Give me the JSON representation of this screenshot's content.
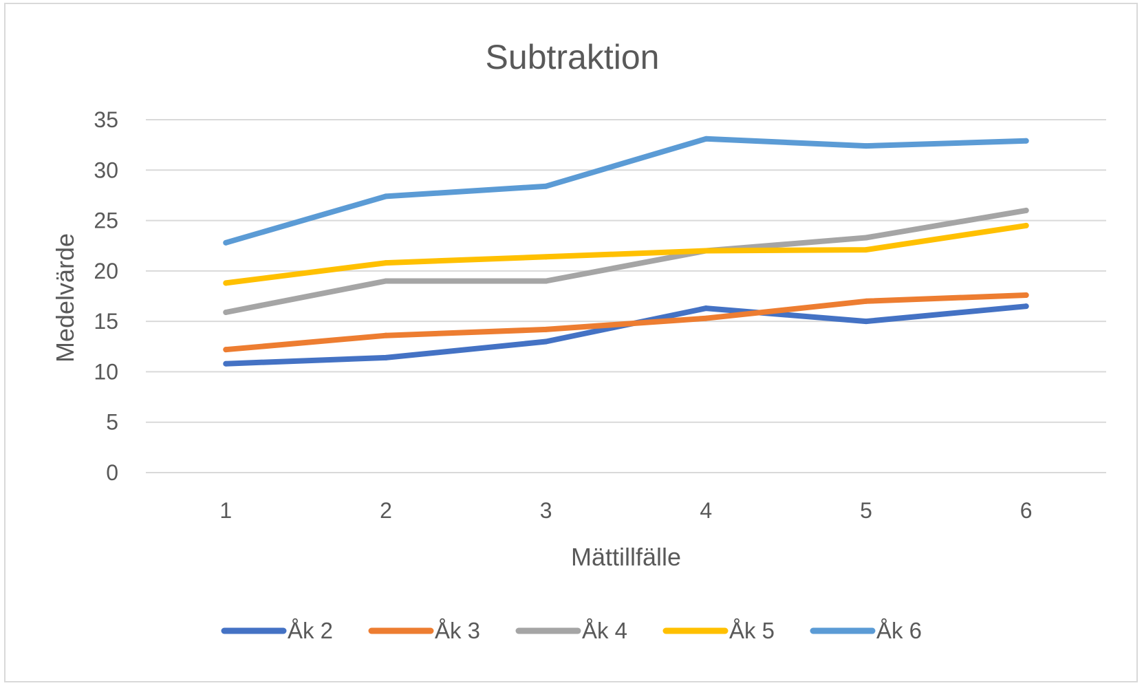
{
  "chart_data": {
    "type": "line",
    "title": "Subtraktion",
    "xlabel": "Mättillfälle",
    "ylabel": "Medelvärde",
    "categories": [
      "1",
      "2",
      "3",
      "4",
      "5",
      "6"
    ],
    "ylim": [
      0,
      35
    ],
    "yticks": [
      0,
      5,
      10,
      15,
      20,
      25,
      30,
      35
    ],
    "grid": true,
    "legend_position": "bottom",
    "series": [
      {
        "name": "Åk 2",
        "color": "#4472c4",
        "values": [
          10.8,
          11.4,
          13.0,
          16.3,
          15.0,
          16.5
        ]
      },
      {
        "name": "Åk 3",
        "color": "#ed7d31",
        "values": [
          12.2,
          13.6,
          14.2,
          15.3,
          17.0,
          17.6
        ]
      },
      {
        "name": "Åk 4",
        "color": "#a5a5a5",
        "values": [
          15.9,
          19.0,
          19.0,
          22.0,
          23.3,
          26.0
        ]
      },
      {
        "name": "Åk 5",
        "color": "#ffc000",
        "values": [
          18.8,
          20.8,
          21.4,
          22.0,
          22.1,
          24.5
        ]
      },
      {
        "name": "Åk 6",
        "color": "#5b9bd5",
        "values": [
          22.8,
          27.4,
          28.4,
          33.1,
          32.4,
          32.9
        ]
      }
    ]
  }
}
